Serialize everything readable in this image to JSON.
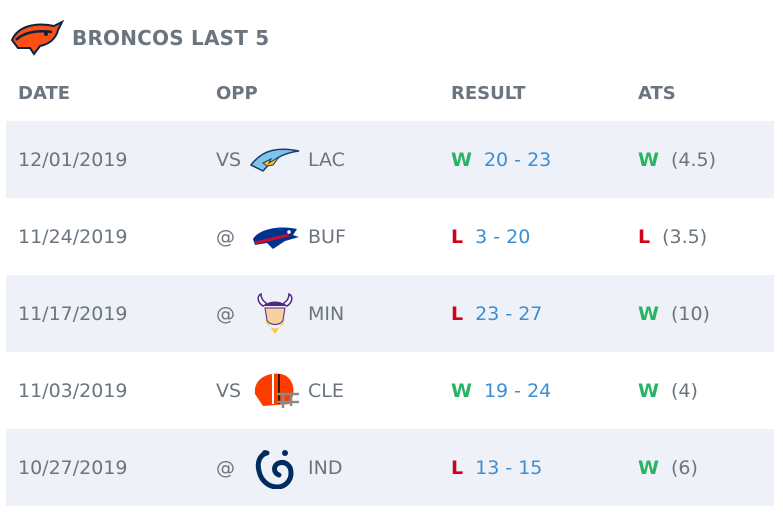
{
  "header": {
    "title": "BRONCOS LAST 5",
    "logo_icon": "broncos-logo-icon"
  },
  "columns": {
    "date": "DATE",
    "opp": "OPP",
    "result": "RESULT",
    "ats": "ATS"
  },
  "colors": {
    "win": "#28b463",
    "loss": "#d0021b",
    "score": "#3b8fd6",
    "row_shade": "#eef1f8"
  },
  "games": [
    {
      "date": "12/01/2019",
      "prefix": "VS",
      "team": "LAC",
      "logo_icon": "chargers-logo-icon",
      "result": "W",
      "score": "20 - 23",
      "ats": "W",
      "spread": "(4.5)"
    },
    {
      "date": "11/24/2019",
      "prefix": "@",
      "team": "BUF",
      "logo_icon": "bills-logo-icon",
      "result": "L",
      "score": "3 - 20",
      "ats": "L",
      "spread": "(3.5)"
    },
    {
      "date": "11/17/2019",
      "prefix": "@",
      "team": "MIN",
      "logo_icon": "vikings-logo-icon",
      "result": "L",
      "score": "23 - 27",
      "ats": "W",
      "spread": "(10)"
    },
    {
      "date": "11/03/2019",
      "prefix": "VS",
      "team": "CLE",
      "logo_icon": "browns-logo-icon",
      "result": "W",
      "score": "19 - 24",
      "ats": "W",
      "spread": "(4)"
    },
    {
      "date": "10/27/2019",
      "prefix": "@",
      "team": "IND",
      "logo_icon": "colts-logo-icon",
      "result": "L",
      "score": "13 - 15",
      "ats": "W",
      "spread": "(6)"
    }
  ]
}
